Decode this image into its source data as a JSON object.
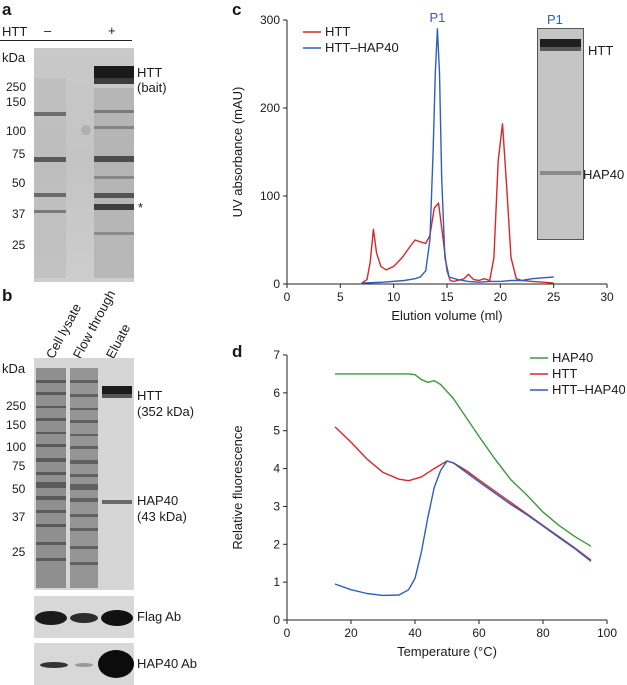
{
  "panel_a": {
    "letter": "a",
    "lane_header": "HTT",
    "lane_minus": "–",
    "lane_plus": "+",
    "kda_label": "kDa",
    "markers": [
      "250",
      "150",
      "100",
      "75",
      "50",
      "37",
      "25"
    ],
    "band_label_line1": "HTT",
    "band_label_line2": "(bait)",
    "asterisk": "*"
  },
  "panel_b": {
    "letter": "b",
    "lanes": [
      "Cell lysate",
      "Flow through",
      "Eluate"
    ],
    "kda_label": "kDa",
    "markers": [
      "250",
      "150",
      "100",
      "75",
      "50",
      "37",
      "25"
    ],
    "htt_label_line1": "HTT",
    "htt_label_line2": "(352 kDa)",
    "hap40_label_line1": "HAP40",
    "hap40_label_line2": "(43 kDa)",
    "blot1_label": "Flag Ab",
    "blot2_label": "HAP40 Ab"
  },
  "panel_c": {
    "letter": "c",
    "peak_label": "P1",
    "inset_lane_label": "P1",
    "inset_htt_label": "HTT",
    "inset_hap40_label": "HAP40"
  },
  "panel_d": {
    "letter": "d"
  },
  "chart_data": [
    {
      "type": "line",
      "title": "",
      "xlabel": "Elution volume (ml)",
      "ylabel": "UV absorbance (mAU)",
      "xlim": [
        0,
        30
      ],
      "ylim": [
        0,
        300
      ],
      "xticks": [
        0,
        5,
        10,
        15,
        20,
        25,
        30
      ],
      "yticks": [
        0,
        100,
        200,
        300
      ],
      "legend": "top-left",
      "series": [
        {
          "name": "HTT",
          "color": "#d9262b",
          "x": [
            7.0,
            7.5,
            7.8,
            8.1,
            8.4,
            8.8,
            9.3,
            10.0,
            10.8,
            11.5,
            12.0,
            12.5,
            13.0,
            13.4,
            13.8,
            14.2,
            14.6,
            15.0,
            15.3,
            15.6,
            16.0,
            16.6,
            17.0,
            17.5,
            18.0,
            18.5,
            19.0,
            19.4,
            19.8,
            20.2,
            20.6,
            21.0,
            21.5,
            22.0,
            23.0,
            24.0,
            25.0
          ],
          "y": [
            1,
            5,
            25,
            62,
            35,
            20,
            16,
            20,
            30,
            42,
            50,
            48,
            46,
            55,
            86,
            92,
            55,
            15,
            4,
            3,
            4,
            6,
            11,
            5,
            4,
            6,
            4,
            30,
            140,
            182,
            110,
            30,
            6,
            4,
            3,
            2,
            1
          ]
        },
        {
          "name": "HTT–HAP40",
          "color": "#2d5fbf",
          "x": [
            7.0,
            9.0,
            11.0,
            12.0,
            12.5,
            13.0,
            13.4,
            13.7,
            13.9,
            14.1,
            14.3,
            14.5,
            14.8,
            15.2,
            16.0,
            17.0,
            18.0,
            19.0,
            20.0,
            21.0,
            22.0,
            23.0,
            24.0,
            25.0
          ],
          "y": [
            1,
            2,
            4,
            6,
            8,
            15,
            50,
            150,
            240,
            290,
            240,
            120,
            30,
            8,
            5,
            3,
            2,
            3,
            3,
            4,
            4,
            6,
            7,
            8
          ]
        }
      ]
    },
    {
      "type": "line",
      "title": "",
      "xlabel": "Temperature (°C)",
      "ylabel": "Relative fluorescence",
      "xlim": [
        0,
        100
      ],
      "ylim": [
        0,
        7
      ],
      "xticks": [
        0,
        20,
        40,
        60,
        80,
        100
      ],
      "yticks": [
        0,
        1,
        2,
        3,
        4,
        5,
        6,
        7
      ],
      "legend": "top-right",
      "series": [
        {
          "name": "HAP40",
          "color": "#3a9a3a",
          "x": [
            15,
            20,
            30,
            38,
            40,
            42,
            44,
            46,
            48,
            52,
            56,
            60,
            65,
            70,
            75,
            80,
            85,
            90,
            95
          ],
          "y": [
            6.5,
            6.5,
            6.5,
            6.5,
            6.48,
            6.35,
            6.28,
            6.32,
            6.22,
            5.85,
            5.35,
            4.85,
            4.25,
            3.7,
            3.3,
            2.85,
            2.5,
            2.2,
            1.95
          ]
        },
        {
          "name": "HTT",
          "color": "#d9262b",
          "x": [
            15,
            20,
            25,
            30,
            35,
            38,
            42,
            46,
            50,
            52,
            56,
            60,
            65,
            70,
            75,
            80,
            85,
            90,
            95
          ],
          "y": [
            5.1,
            4.7,
            4.25,
            3.9,
            3.72,
            3.68,
            3.78,
            4.0,
            4.2,
            4.15,
            3.95,
            3.7,
            3.4,
            3.1,
            2.8,
            2.5,
            2.2,
            1.9,
            1.58
          ]
        },
        {
          "name": "HTT–HAP40",
          "color": "#2d5fbf",
          "x": [
            15,
            20,
            25,
            30,
            35,
            38,
            40,
            42,
            44,
            46,
            48,
            50,
            52,
            56,
            60,
            65,
            70,
            75,
            80,
            85,
            90,
            95
          ],
          "y": [
            0.95,
            0.8,
            0.7,
            0.65,
            0.66,
            0.8,
            1.1,
            1.8,
            2.7,
            3.5,
            3.95,
            4.2,
            4.15,
            3.9,
            3.65,
            3.35,
            3.05,
            2.78,
            2.48,
            2.18,
            1.88,
            1.55
          ]
        }
      ]
    }
  ]
}
